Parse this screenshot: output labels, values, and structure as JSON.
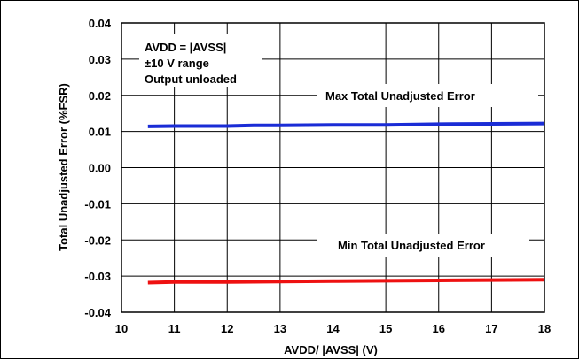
{
  "chart_data": {
    "type": "line",
    "title": "",
    "xlabel": "AVDD/ |AVSS| (V)",
    "ylabel": "Total Unadjusted Error (%FSR)",
    "xlim": [
      10,
      18
    ],
    "ylim": [
      -0.04,
      0.04
    ],
    "x_ticks": [
      "10",
      "11",
      "12",
      "13",
      "14",
      "15",
      "16",
      "17",
      "18"
    ],
    "y_ticks": [
      "0.04",
      "0.03",
      "0.02",
      "0.01",
      "0.00",
      "-0.01",
      "-0.02",
      "-0.03",
      "-0.04"
    ],
    "grid": true,
    "legend": "none",
    "annotations": {
      "conditions": [
        "AVDD = |AVSS|",
        "±10 V range",
        "Output unloaded"
      ],
      "max_label": "Max Total Unadjusted Error",
      "min_label": "Min Total Unadjusted Error"
    },
    "series": [
      {
        "label_ref": "max_label",
        "color": "#1a2cd6",
        "x": [
          10.5,
          11,
          12,
          12.5,
          13,
          14,
          15,
          16,
          17,
          18
        ],
        "values": [
          0.0114,
          0.0115,
          0.0115,
          0.0117,
          0.0117,
          0.0118,
          0.0118,
          0.012,
          0.0121,
          0.0122
        ]
      },
      {
        "label_ref": "min_label",
        "color": "#ee1111",
        "x": [
          10.5,
          11,
          12,
          13,
          14,
          15,
          16,
          17,
          18
        ],
        "values": [
          -0.0318,
          -0.0316,
          -0.0316,
          -0.0315,
          -0.0314,
          -0.0313,
          -0.0312,
          -0.0311,
          -0.031
        ]
      }
    ]
  }
}
